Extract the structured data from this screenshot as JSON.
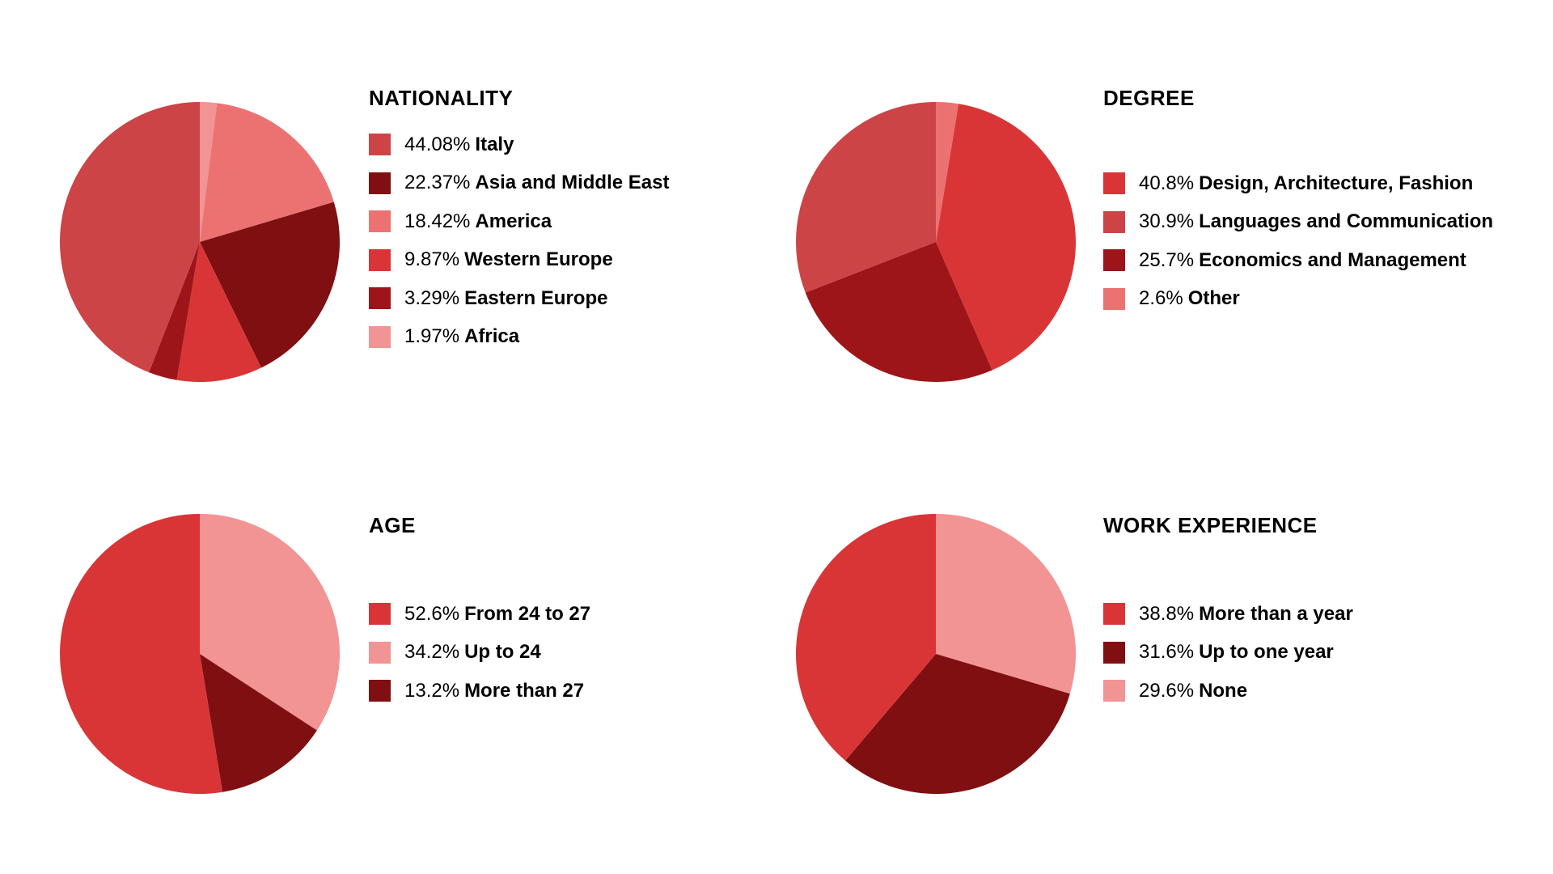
{
  "chart_data": [
    {
      "type": "pie",
      "title": "NATIONALITY",
      "slices": [
        {
          "percent_label": "44.08%",
          "label": "Italy",
          "value": 44.08,
          "color": "#cc4446"
        },
        {
          "percent_label": "22.37%",
          "label": "Asia and Middle East",
          "value": 22.37,
          "color": "#7f0f10"
        },
        {
          "percent_label": "18.42%",
          "label": "America",
          "value": 18.42,
          "color": "#ec7272"
        },
        {
          "percent_label": "9.87%",
          "label": "Western Europe",
          "value": 9.87,
          "color": "#d93537"
        },
        {
          "percent_label": "3.29%",
          "label": "Eastern Europe",
          "value": 3.29,
          "color": "#9d1519"
        },
        {
          "percent_label": "1.97%",
          "label": "Africa",
          "value": 1.97,
          "color": "#f29394"
        }
      ],
      "pie_order": [
        "Africa",
        "America",
        "Asia and Middle East",
        "Western Europe",
        "Eastern Europe",
        "Italy"
      ]
    },
    {
      "type": "pie",
      "title": "DEGREE",
      "slices": [
        {
          "percent_label": "40.8%",
          "label": "Design, Architecture, Fashion",
          "value": 40.8,
          "color": "#d93537"
        },
        {
          "percent_label": "30.9%",
          "label": "Languages and Communication",
          "value": 30.9,
          "color": "#cc4446"
        },
        {
          "percent_label": "25.7%",
          "label": "Economics and Management",
          "value": 25.7,
          "color": "#9d1519"
        },
        {
          "percent_label": "2.6%",
          "label": "Other",
          "value": 2.6,
          "color": "#ec7272"
        }
      ],
      "pie_order": [
        "Other",
        "Design, Architecture, Fashion",
        "Economics and Management",
        "Languages and Communication"
      ]
    },
    {
      "type": "pie",
      "title": "AGE",
      "slices": [
        {
          "percent_label": "52.6%",
          "label": "From 24 to 27",
          "value": 52.6,
          "color": "#d93537"
        },
        {
          "percent_label": "34.2%",
          "label": "Up to 24",
          "value": 34.2,
          "color": "#f29394"
        },
        {
          "percent_label": "13.2%",
          "label": "More than 27",
          "value": 13.2,
          "color": "#7f0f10"
        }
      ],
      "pie_order": [
        "Up to 24",
        "More than 27",
        "From 24 to 27"
      ]
    },
    {
      "type": "pie",
      "title": "WORK EXPERIENCE",
      "slices": [
        {
          "percent_label": "38.8%",
          "label": "More than a year",
          "value": 38.8,
          "color": "#d93537"
        },
        {
          "percent_label": "31.6%",
          "label": "Up to one year",
          "value": 31.6,
          "color": "#7f0f10"
        },
        {
          "percent_label": "29.6%",
          "label": "None",
          "value": 29.6,
          "color": "#f29394"
        }
      ],
      "pie_order": [
        "None",
        "Up to one year",
        "More than a year"
      ]
    }
  ]
}
